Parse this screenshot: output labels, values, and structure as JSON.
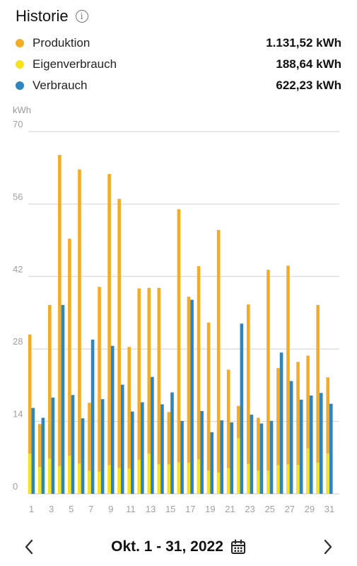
{
  "header": {
    "title": "Historie",
    "info_icon": "info-icon"
  },
  "legend": [
    {
      "label": "Produktion",
      "value": "1.131,52 kWh",
      "color": "#F4AC24"
    },
    {
      "label": "Eigenverbrauch",
      "value": "188,64 kWh",
      "color": "#F7E21C"
    },
    {
      "label": "Verbrauch",
      "value": "622,23 kWh",
      "color": "#2E86C1"
    }
  ],
  "footer": {
    "range_label": "Okt. 1 - 31, 2022",
    "prev_icon": "chevron-left-icon",
    "next_icon": "chevron-right-icon",
    "calendar_icon": "calendar-icon"
  },
  "chart_data": {
    "type": "bar",
    "ylabel": "kWh",
    "ylim": [
      0,
      70
    ],
    "yticks": [
      0,
      14,
      28,
      42,
      56,
      70
    ],
    "grid": true,
    "categories": [
      "1",
      "2",
      "3",
      "4",
      "5",
      "6",
      "7",
      "8",
      "9",
      "10",
      "11",
      "12",
      "13",
      "14",
      "15",
      "16",
      "17",
      "18",
      "19",
      "20",
      "21",
      "22",
      "23",
      "24",
      "25",
      "26",
      "27",
      "28",
      "29",
      "30",
      "31"
    ],
    "xtick_labels": [
      "1",
      "3",
      "5",
      "7",
      "9",
      "11",
      "13",
      "15",
      "17",
      "19",
      "21",
      "23",
      "25",
      "27",
      "29",
      "31"
    ],
    "series": [
      {
        "name": "Produktion",
        "color": "#F4AC24",
        "values": [
          30.8,
          13.5,
          36.5,
          65.5,
          49.3,
          62.7,
          17.6,
          40.0,
          61.8,
          57.0,
          28.4,
          39.7,
          39.8,
          39.8,
          15.8,
          55.0,
          38.1,
          44.0,
          33.1,
          51.0,
          24.0,
          17.0,
          36.6,
          14.7,
          43.3,
          24.3,
          44.1,
          25.5,
          26.7,
          36.5,
          22.5
        ]
      },
      {
        "name": "Eigenverbrauch",
        "color": "#F7E21C",
        "values": [
          7.8,
          5.2,
          6.8,
          5.4,
          7.4,
          5.9,
          4.5,
          4.3,
          5.6,
          5.0,
          4.9,
          6.6,
          7.8,
          5.7,
          5.7,
          6.1,
          6.0,
          6.7,
          4.5,
          4.1,
          5.0,
          10.8,
          5.8,
          4.5,
          4.5,
          5.6,
          5.7,
          5.6,
          8.8,
          6.0,
          7.8
        ]
      },
      {
        "name": "Verbrauch",
        "color": "#2E86C1",
        "values": [
          16.6,
          14.7,
          18.6,
          36.5,
          19.1,
          14.6,
          29.8,
          18.3,
          28.6,
          21.1,
          15.9,
          17.7,
          22.6,
          17.3,
          19.6,
          14.1,
          37.5,
          16.0,
          11.9,
          14.2,
          13.8,
          32.9,
          15.3,
          13.6,
          14.1,
          27.3,
          21.8,
          18.2,
          19.0,
          19.5,
          17.4
        ]
      }
    ]
  }
}
